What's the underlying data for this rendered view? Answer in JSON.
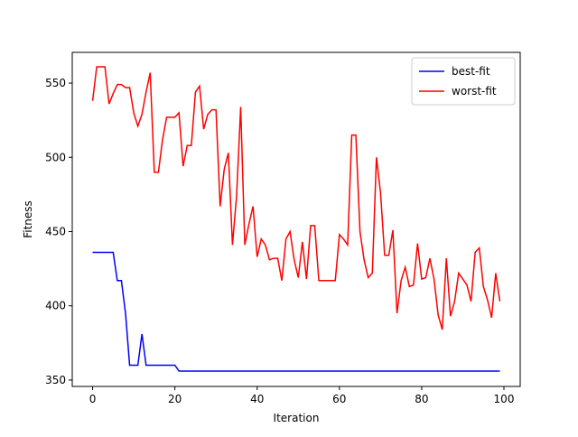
{
  "chart_data": {
    "type": "line",
    "xlabel": "Iteration",
    "ylabel": "Fitness",
    "x": [
      0,
      1,
      2,
      3,
      4,
      5,
      6,
      7,
      8,
      9,
      10,
      11,
      12,
      13,
      14,
      15,
      16,
      17,
      18,
      19,
      20,
      21,
      22,
      23,
      24,
      25,
      26,
      27,
      28,
      29,
      30,
      31,
      32,
      33,
      34,
      35,
      36,
      37,
      38,
      39,
      40,
      41,
      42,
      43,
      44,
      45,
      46,
      47,
      48,
      49,
      50,
      51,
      52,
      53,
      54,
      55,
      56,
      57,
      58,
      59,
      60,
      61,
      62,
      63,
      64,
      65,
      66,
      67,
      68,
      69,
      70,
      71,
      72,
      73,
      74,
      75,
      76,
      77,
      78,
      79,
      80,
      81,
      82,
      83,
      84,
      85,
      86,
      87,
      88,
      89,
      90,
      91,
      92,
      93,
      94,
      95,
      96,
      97,
      98,
      99
    ],
    "series": [
      {
        "name": "best-fit",
        "color": "#0000ff",
        "values": [
          436,
          436,
          436,
          436,
          436,
          436,
          417,
          417,
          395,
          360,
          360,
          360,
          381,
          360,
          360,
          360,
          360,
          360,
          360,
          360,
          360,
          356,
          356,
          356,
          356,
          356,
          356,
          356,
          356,
          356,
          356,
          356,
          356,
          356,
          356,
          356,
          356,
          356,
          356,
          356,
          356,
          356,
          356,
          356,
          356,
          356,
          356,
          356,
          356,
          356,
          356,
          356,
          356,
          356,
          356,
          356,
          356,
          356,
          356,
          356,
          356,
          356,
          356,
          356,
          356,
          356,
          356,
          356,
          356,
          356,
          356,
          356,
          356,
          356,
          356,
          356,
          356,
          356,
          356,
          356,
          356,
          356,
          356,
          356,
          356,
          356,
          356,
          356,
          356,
          356,
          356,
          356,
          356,
          356,
          356,
          356,
          356,
          356,
          356,
          356
        ]
      },
      {
        "name": "worst-fit",
        "color": "#ff0000",
        "values": [
          538,
          561,
          561,
          561,
          536,
          543,
          549,
          549,
          547,
          547,
          530,
          521,
          529,
          544,
          557,
          490,
          490,
          512,
          527,
          527,
          527,
          530,
          494,
          508,
          508,
          544,
          548,
          519,
          529,
          532,
          532,
          467,
          492,
          503,
          441,
          474,
          534,
          441,
          455,
          467,
          433,
          445,
          441,
          431,
          432,
          432,
          417,
          445,
          450,
          431,
          419,
          443,
          418,
          454,
          454,
          417,
          417,
          417,
          417,
          417,
          448,
          445,
          441,
          515,
          515,
          450,
          431,
          419,
          422,
          500,
          476,
          434,
          434,
          451,
          395,
          417,
          426,
          413,
          414,
          442,
          418,
          419,
          432,
          418,
          394,
          384,
          432,
          393,
          403,
          422,
          418,
          414,
          403,
          436,
          439,
          413,
          404,
          392,
          422,
          403
        ]
      }
    ],
    "xlim": [
      -4.95,
      103.95
    ],
    "xticks": [
      0,
      20,
      40,
      60,
      80,
      100
    ],
    "ylim": [
      345.7,
      570.7
    ],
    "yticks": [
      350,
      400,
      450,
      500,
      550
    ],
    "legend": "upper right"
  }
}
